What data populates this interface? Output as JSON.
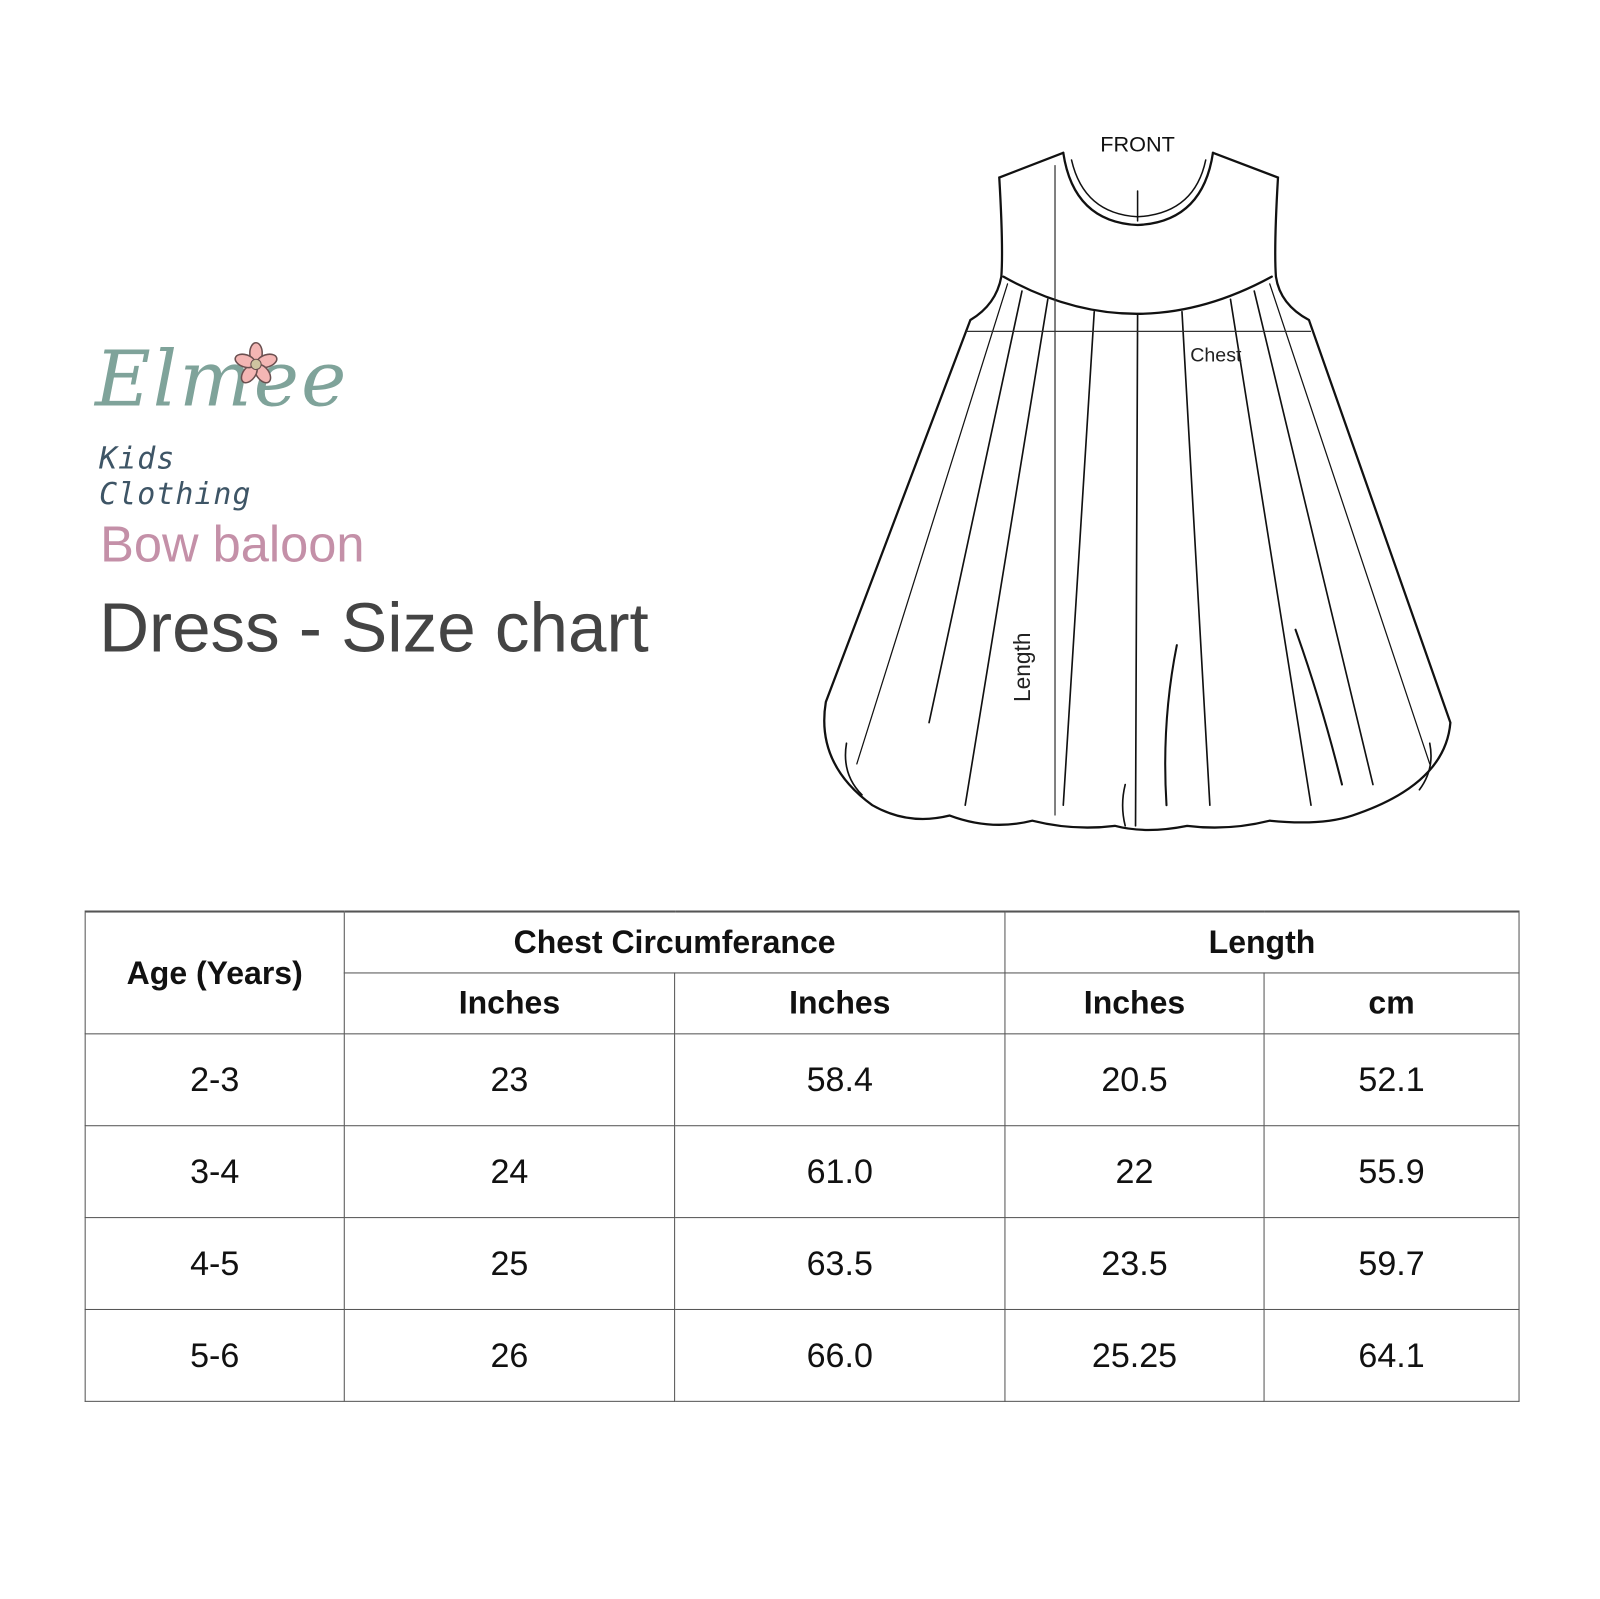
{
  "brand": {
    "name": "Elmee",
    "tagline": "Kids Clothing",
    "colors": {
      "primary": "#7fa39a",
      "tagline": "#3e5566",
      "flower": "#f4b6b4"
    }
  },
  "product": {
    "name": "Bow baloon",
    "title": "Dress - Size chart",
    "accent": "#c490a8"
  },
  "diagram": {
    "view_label": "FRONT",
    "chest_label": "Chest",
    "length_label": "Length"
  },
  "table": {
    "header": {
      "age": "Age (Years)",
      "chest": "Chest Circumferance",
      "length": "Length"
    },
    "subheaders": [
      "Inches",
      "Inches",
      "Inches",
      "cm"
    ],
    "rows": [
      [
        "2-3",
        "23",
        "58.4",
        "20.5",
        "52.1"
      ],
      [
        "3-4",
        "24",
        "61.0",
        "22",
        "55.9"
      ],
      [
        "4-5",
        "25",
        "63.5",
        "23.5",
        "59.7"
      ],
      [
        "5-6",
        "26",
        "66.0",
        "25.25",
        "64.1"
      ]
    ]
  }
}
